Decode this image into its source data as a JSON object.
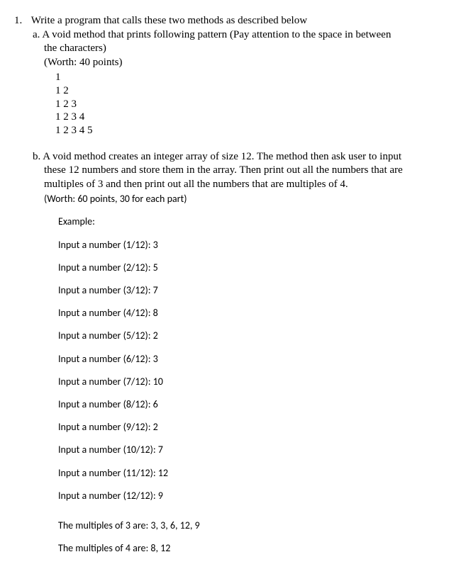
{
  "question": {
    "number": "1.",
    "prompt": "Write a program that calls these two methods as described below",
    "part_a": {
      "label": "a.",
      "line1": "A void method that prints following pattern (Pay attention to the space in between",
      "line2": "the characters)",
      "worth": "(Worth: 40 points)",
      "pattern": [
        "1",
        "1 2",
        "1 2 3",
        "1 2 3 4",
        "1 2 3 4 5"
      ]
    },
    "part_b": {
      "label": "b.",
      "line1": "A void method creates an integer array of size 12. The method then ask user to input",
      "line2": "these 12 numbers and store them in the array. Then print out all the numbers that are",
      "line3": "multiples of 3 and then print out all the numbers that are multiples of 4.",
      "worth": "(Worth: 60 points, 30 for each part)",
      "example_label": "Example:",
      "inputs": [
        "Input a number (1/12): 3",
        "Input a number (2/12): 5",
        "Input a number (3/12): 7",
        "Input a number (4/12): 8",
        "Input a number (5/12): 2",
        "Input a number (6/12): 3",
        "Input a number (7/12): 10",
        "Input a number (8/12): 6",
        "Input a number (9/12): 2",
        "Input a number (10/12): 7",
        "Input a number (11/12): 12",
        "Input a number (12/12): 9"
      ],
      "result3": "The multiples of 3 are: 3, 3, 6, 12, 9",
      "result4": "The multiples of 4 are: 8, 12"
    }
  }
}
